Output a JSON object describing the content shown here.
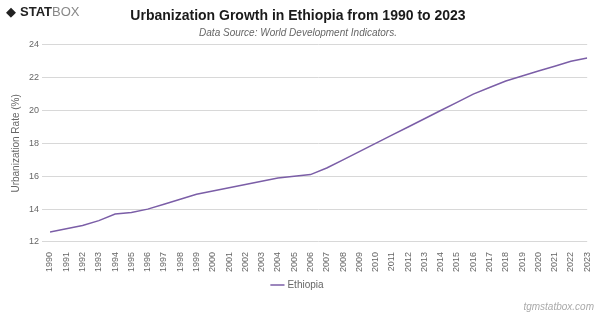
{
  "chart_data": {
    "type": "line",
    "title": "Urbanization Growth in Ethiopia from 1990 to 2023",
    "subtitle": "Data Source: World Development Indicators.",
    "ylabel": "Urbanization Rate (%)",
    "annotations": [
      "◆",
      "STAT",
      "BOX",
      "tgmstatbox.com"
    ],
    "x": [
      1990,
      1991,
      1992,
      1993,
      1994,
      1995,
      1996,
      1997,
      1998,
      1999,
      2000,
      2001,
      2002,
      2003,
      2004,
      2005,
      2006,
      2007,
      2008,
      2009,
      2010,
      2011,
      2012,
      2013,
      2014,
      2015,
      2016,
      2017,
      2018,
      2019,
      2020,
      2021,
      2022,
      2023
    ],
    "series": [
      {
        "name": "Ethiopia",
        "color": "#7B5EA7",
        "values": [
          12.6,
          12.8,
          13.0,
          13.3,
          13.7,
          13.8,
          14.0,
          14.3,
          14.6,
          14.9,
          15.1,
          15.3,
          15.5,
          15.7,
          15.9,
          16.0,
          16.1,
          16.5,
          17.0,
          17.5,
          18.0,
          18.5,
          19.0,
          19.5,
          20.0,
          20.5,
          21.0,
          21.4,
          21.8,
          22.1,
          22.4,
          22.7,
          23.0,
          23.2
        ]
      }
    ],
    "xlim": [
      1990,
      2023
    ],
    "xticks": [
      1990,
      1991,
      1992,
      1993,
      1994,
      1995,
      1996,
      1997,
      1998,
      1999,
      2000,
      2001,
      2002,
      2003,
      2004,
      2005,
      2006,
      2007,
      2008,
      2009,
      2010,
      2011,
      2012,
      2013,
      2014,
      2015,
      2016,
      2017,
      2018,
      2019,
      2020,
      2021,
      2022,
      2023
    ],
    "ylim": [
      12,
      24
    ],
    "yticks": [
      12,
      14,
      16,
      18,
      20,
      22,
      24
    ],
    "grid": "y",
    "legend": "bottom"
  }
}
